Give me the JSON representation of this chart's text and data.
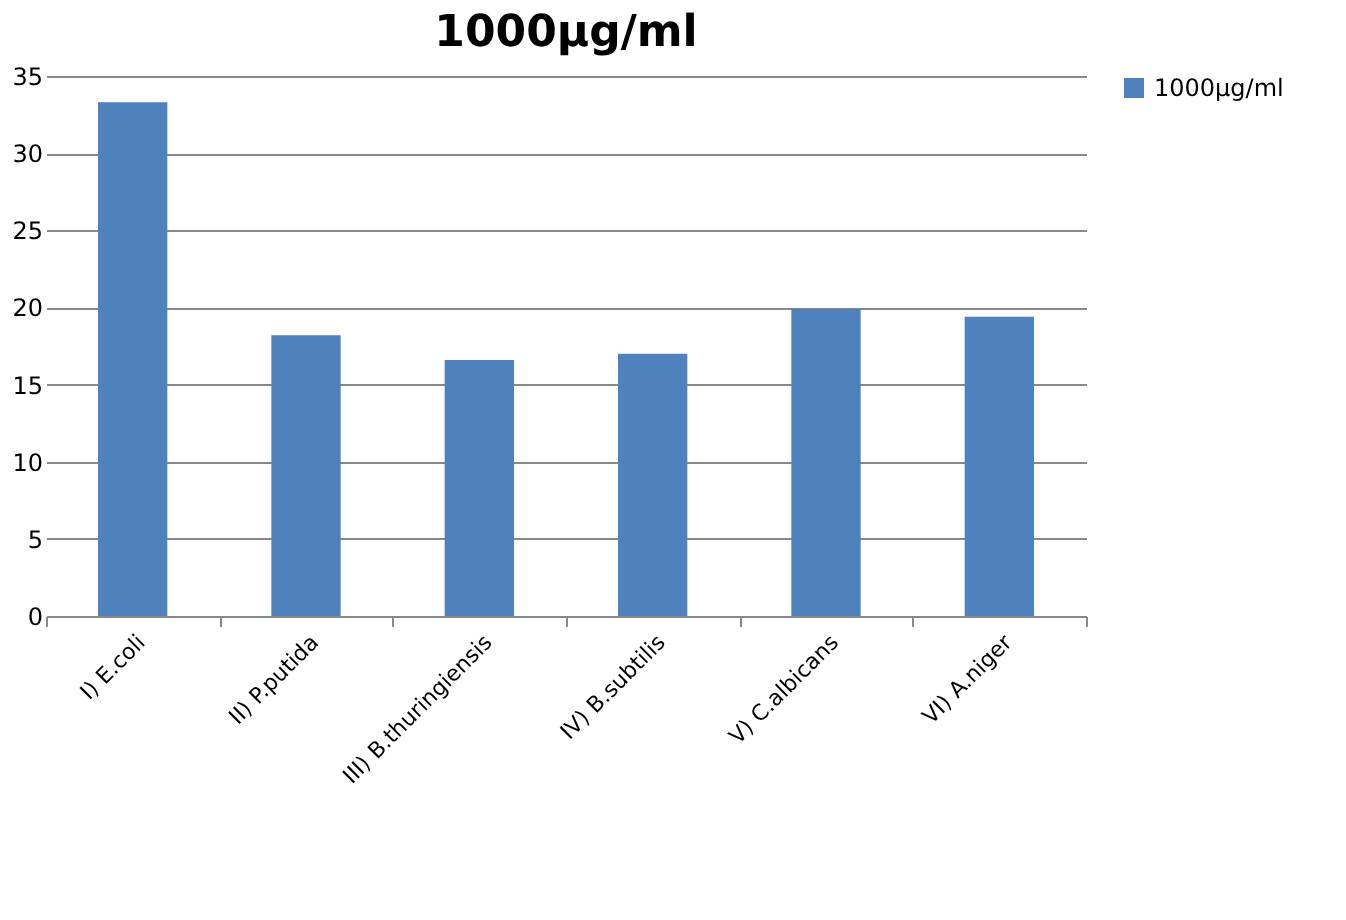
{
  "chart_data": {
    "type": "bar",
    "title": "1000µg/ml",
    "categories": [
      "I) E.coli",
      "II) P.putida",
      "III) B.thuringiensis",
      "IV) B.subtilis",
      "V) C.albicans",
      "VI) A.niger"
    ],
    "series": [
      {
        "name": "1000µg/ml",
        "color": "#4f81bd",
        "values": [
          33.3,
          18.2,
          16.6,
          17.0,
          19.9,
          19.4
        ]
      }
    ],
    "ylim": [
      0,
      35
    ],
    "yticks": [
      0,
      5,
      10,
      15,
      20,
      25,
      30,
      35
    ],
    "grid": "y",
    "legend": "right"
  }
}
